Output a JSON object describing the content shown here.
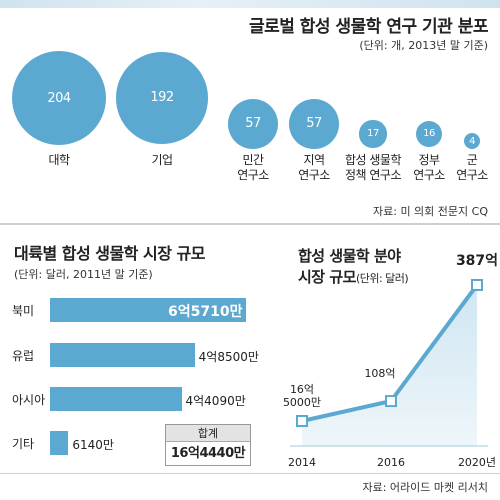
{
  "bubble_chart": {
    "title": "글로벌 합성 생물학 연구 기관 분포",
    "unit": "(단위: 개, 2013년 말 기준)",
    "source": "자료: 미 의회 전문지 CQ",
    "color": "#5ba9d0",
    "chart_data": {
      "type": "bubble",
      "categories": [
        "대학",
        "기업",
        "민간\n연구소",
        "지역\n연구소",
        "합성 생물학\n정책 연구소",
        "정부\n연구소",
        "군\n연구소"
      ],
      "values": [
        204,
        192,
        57,
        57,
        17,
        16,
        4
      ]
    }
  },
  "bar_chart": {
    "title": "대륙별 합성 생물학 시장 규모",
    "unit": "(단위: 달러, 2011년 말 기준)",
    "color": "#5ba9d0",
    "chart_data": {
      "type": "bar",
      "orientation": "horizontal",
      "categories": [
        "북미",
        "유럽",
        "아시아",
        "기타"
      ],
      "values": [
        657100000,
        485000000,
        440900000,
        61400000
      ],
      "value_labels": [
        "6억5710만",
        "4억8500만",
        "4억4090만",
        "6140만"
      ]
    },
    "total": {
      "label": "합계",
      "value": "16억4440만"
    }
  },
  "line_chart": {
    "title_line1": "합성 생물학 분야",
    "title_line2": "시장 규모",
    "unit": "(단위: 달러)",
    "source": "자료: 어라이드 마켓 리서치",
    "color": "#5ba9d0",
    "chart_data": {
      "type": "area",
      "x": [
        "2014",
        "2016",
        "2020년"
      ],
      "values": [
        1650000000,
        10800000000,
        38700000000
      ],
      "value_labels": [
        "16억\n5000만",
        "108억",
        "387억"
      ]
    }
  }
}
